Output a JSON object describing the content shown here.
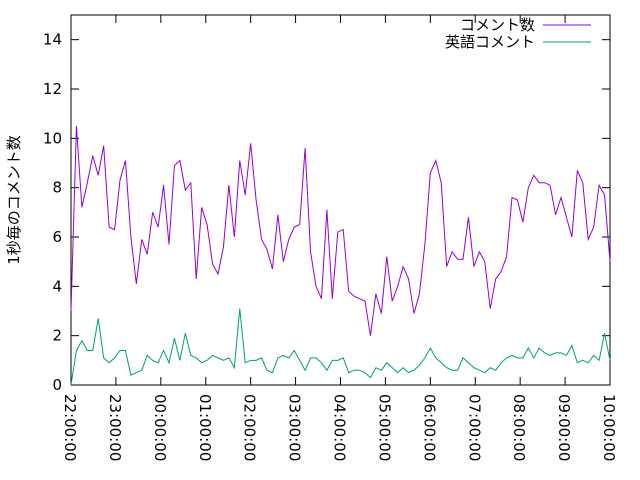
{
  "chart_data": {
    "type": "line",
    "ylabel": "1秒毎のコメント数",
    "xlabel": "",
    "ylim": [
      0,
      15
    ],
    "yticks": [
      0,
      2,
      4,
      6,
      8,
      10,
      12,
      14
    ],
    "xlim": [
      "22:00:00",
      "10:00:00"
    ],
    "xticks": [
      "22:00:00",
      "23:00:00",
      "00:00:00",
      "01:00:00",
      "02:00:00",
      "03:00:00",
      "04:00:00",
      "05:00:00",
      "06:00:00",
      "07:00:00",
      "08:00:00",
      "09:00:00",
      "10:00:00"
    ],
    "grid": false,
    "legend_position": "top-right",
    "series": [
      {
        "name": "コメント数",
        "color": "#9400d3",
        "values": [
          3.0,
          10.5,
          7.2,
          8.2,
          9.3,
          8.5,
          9.7,
          6.4,
          6.3,
          8.3,
          9.1,
          6.0,
          4.1,
          5.9,
          5.3,
          7.0,
          6.4,
          8.1,
          5.7,
          8.9,
          9.1,
          7.9,
          8.2,
          4.3,
          7.2,
          6.5,
          4.9,
          4.5,
          5.6,
          8.1,
          6.0,
          9.1,
          7.7,
          9.8,
          7.5,
          5.9,
          5.5,
          4.7,
          6.9,
          5.0,
          5.9,
          6.4,
          6.5,
          9.6,
          5.4,
          4.0,
          3.5,
          7.1,
          3.5,
          6.2,
          6.3,
          3.8,
          3.6,
          3.5,
          3.4,
          2.0,
          3.7,
          2.9,
          5.2,
          3.4,
          4.0,
          4.8,
          4.3,
          2.9,
          3.7,
          5.7,
          8.6,
          9.1,
          8.2,
          4.8,
          5.4,
          5.1,
          5.1,
          6.8,
          4.8,
          5.4,
          5.0,
          3.1,
          4.3,
          4.6,
          5.2,
          7.6,
          7.5,
          6.6,
          8.0,
          8.5,
          8.2,
          8.2,
          8.1,
          6.9,
          7.6,
          6.8,
          6.0,
          8.7,
          8.2,
          5.9,
          6.4,
          8.1,
          7.7,
          5.0
        ]
      },
      {
        "name": "英語コメント",
        "color": "#009e73",
        "values": [
          0.0,
          1.4,
          1.8,
          1.4,
          1.4,
          2.7,
          1.1,
          0.9,
          1.1,
          1.4,
          1.4,
          0.4,
          0.5,
          0.6,
          1.2,
          1.0,
          0.9,
          1.4,
          0.9,
          1.9,
          1.0,
          2.1,
          1.2,
          1.1,
          0.9,
          1.0,
          1.2,
          1.1,
          1.0,
          1.1,
          0.7,
          3.1,
          0.9,
          1.0,
          1.0,
          1.1,
          0.6,
          0.5,
          1.1,
          1.2,
          1.1,
          1.4,
          1.0,
          0.6,
          1.1,
          1.1,
          0.9,
          0.6,
          1.0,
          1.0,
          1.1,
          0.5,
          0.6,
          0.6,
          0.5,
          0.3,
          0.7,
          0.6,
          0.9,
          0.7,
          0.5,
          0.7,
          0.5,
          0.6,
          0.8,
          1.1,
          1.5,
          1.1,
          0.9,
          0.7,
          0.6,
          0.6,
          1.1,
          0.9,
          0.7,
          0.6,
          0.5,
          0.7,
          0.6,
          0.9,
          1.1,
          1.2,
          1.1,
          1.1,
          1.5,
          1.1,
          1.5,
          1.3,
          1.2,
          1.3,
          1.3,
          1.2,
          1.6,
          0.9,
          1.0,
          0.9,
          1.2,
          1.0,
          2.1,
          1.0
        ]
      }
    ]
  }
}
